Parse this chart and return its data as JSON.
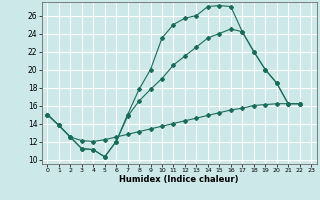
{
  "xlabel": "Humidex (Indice chaleur)",
  "bg_color": "#cce8e8",
  "grid_color": "#ffffff",
  "line_color": "#1a6b5a",
  "xlim": [
    -0.5,
    23.5
  ],
  "ylim": [
    9.5,
    27.5
  ],
  "xticks": [
    0,
    1,
    2,
    3,
    4,
    5,
    6,
    7,
    8,
    9,
    10,
    11,
    12,
    13,
    14,
    15,
    16,
    17,
    18,
    19,
    20,
    21,
    22,
    23
  ],
  "yticks": [
    10,
    12,
    14,
    16,
    18,
    20,
    22,
    24,
    26
  ],
  "curve1_x": [
    0,
    1,
    2,
    3,
    4,
    5,
    6,
    7,
    8,
    9,
    10,
    11,
    12,
    13,
    14,
    15,
    16,
    17,
    18,
    19,
    20,
    21,
    22
  ],
  "curve1_y": [
    15,
    13.8,
    12.5,
    11.2,
    11.1,
    10.3,
    12.0,
    15.0,
    17.8,
    20.0,
    23.5,
    25.0,
    25.7,
    26.0,
    27.0,
    27.1,
    27.0,
    24.2,
    22.0,
    20.0,
    18.5,
    16.2,
    16.2
  ],
  "curve2_x": [
    0,
    1,
    2,
    3,
    4,
    5,
    6,
    7,
    8,
    9,
    10,
    11,
    12,
    13,
    14,
    15,
    16,
    17,
    18,
    19,
    20,
    21,
    22
  ],
  "curve2_y": [
    15,
    13.8,
    12.5,
    11.2,
    11.1,
    10.3,
    12.0,
    14.8,
    16.5,
    17.8,
    19.0,
    20.5,
    21.5,
    22.5,
    23.5,
    24.0,
    24.5,
    24.2,
    22.0,
    20.0,
    18.5,
    16.2,
    16.2
  ],
  "curve3_x": [
    0,
    1,
    2,
    3,
    4,
    5,
    6,
    7,
    8,
    9,
    10,
    11,
    12,
    13,
    14,
    15,
    16,
    17,
    18,
    19,
    20,
    21,
    22
  ],
  "curve3_y": [
    15,
    13.8,
    12.5,
    12.1,
    12.0,
    12.2,
    12.5,
    12.8,
    13.1,
    13.4,
    13.7,
    14.0,
    14.3,
    14.6,
    14.9,
    15.2,
    15.5,
    15.7,
    16.0,
    16.1,
    16.2,
    16.2,
    16.2
  ]
}
